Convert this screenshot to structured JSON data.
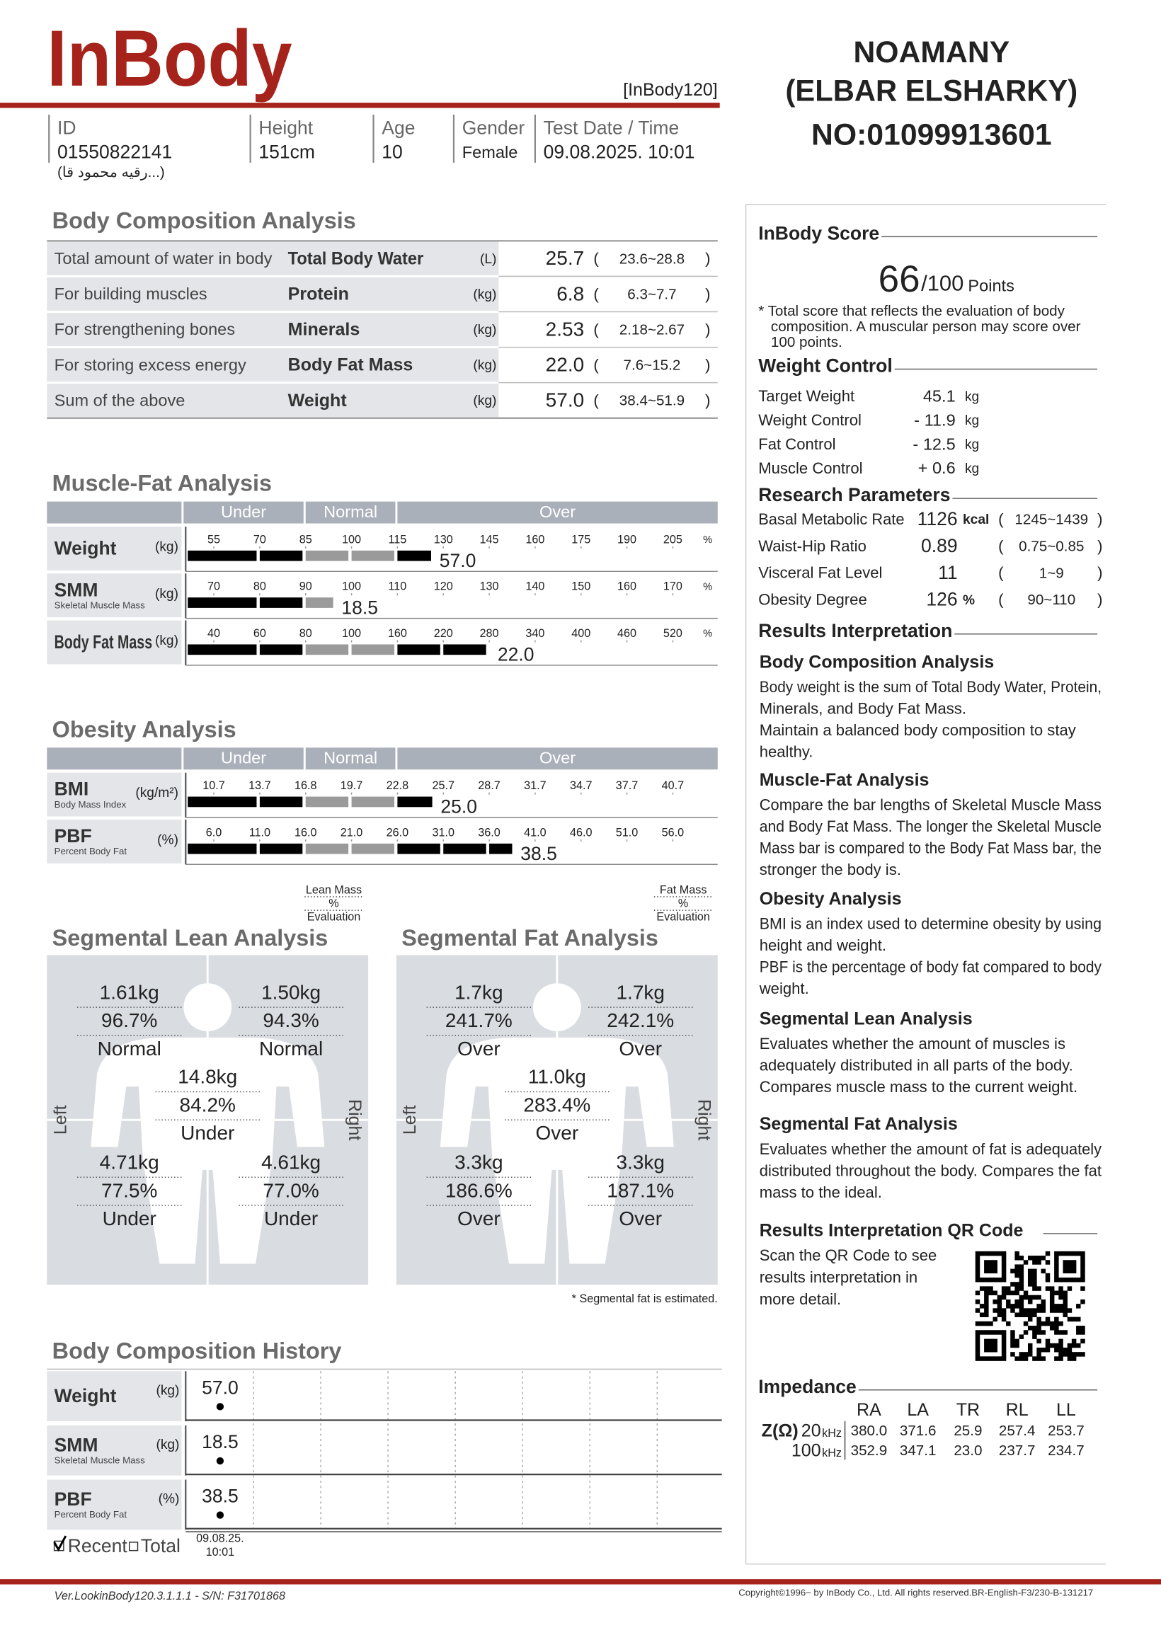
{
  "header": {
    "logo": "InBody",
    "model": "[InBody120]",
    "name_lines": [
      "NOAMANY",
      "(ELBAR ELSHARKY)",
      "NO:01099913601"
    ]
  },
  "info": [
    {
      "label": "ID",
      "value": "01550822141",
      "note": "(رقيه محمود قا...)"
    },
    {
      "label": "Height",
      "value": "151cm"
    },
    {
      "label": "Age",
      "value": "10"
    },
    {
      "label": "Gender",
      "value": "Female"
    },
    {
      "label": "Test Date / Time",
      "value": "09.08.2025. 10:01"
    }
  ],
  "brackets": [
    "(",
    ")"
  ],
  "body_composition": {
    "title": "Body Composition Analysis",
    "rows": [
      {
        "description": "Total amount of water in body",
        "name": "Total Body Water",
        "unit": "(L)",
        "value": "25.7",
        "range": "23.6~28.8"
      },
      {
        "description": "For building muscles",
        "name": "Protein",
        "unit": "(kg)",
        "value": "6.8",
        "range": "6.3~7.7"
      },
      {
        "description": "For strengthening bones",
        "name": "Minerals",
        "unit": "(kg)",
        "value": "2.53",
        "range": "2.18~2.67"
      },
      {
        "description": "For storing excess energy",
        "name": "Body Fat Mass",
        "unit": "(kg)",
        "value": "22.0",
        "range": "7.6~15.2"
      },
      {
        "description": "Sum of the above",
        "name": "Weight",
        "unit": "(kg)",
        "value": "57.0",
        "range": "38.4~51.9"
      }
    ]
  },
  "muscle_fat": {
    "title": "Muscle-Fat Analysis",
    "zones": [
      "Under",
      "Normal",
      "Over"
    ],
    "percent_sign": "%",
    "rows": [
      {
        "name": "Weight",
        "unit": "(kg)",
        "ticks": [
          55,
          70,
          85,
          100,
          115,
          130,
          145,
          160,
          175,
          190,
          205
        ],
        "percent": 126,
        "value": 57,
        "value_label": "57.0"
      },
      {
        "name": "SMM",
        "subtitle": "Skeletal Muscle Mass",
        "unit": "(kg)",
        "ticks": [
          70,
          80,
          90,
          100,
          110,
          120,
          130,
          140,
          150,
          160,
          170
        ],
        "percent": 96,
        "value": 18.5
      },
      {
        "name": "Body Fat Mass",
        "unit": "(kg)",
        "ticks": [
          40,
          60,
          80,
          100,
          160,
          220,
          280,
          340,
          400,
          460,
          520
        ],
        "percent": 280,
        "value": 22,
        "value_label": "22.0"
      }
    ]
  },
  "obesity": {
    "title": "Obesity Analysis",
    "zones": [
      "Under",
      "Normal",
      "Over"
    ],
    "rows": [
      {
        "name": "BMI",
        "subtitle": "Body Mass Index",
        "unit": "(kg/m²)",
        "ticks": [
          10.7,
          13.7,
          16.8,
          19.7,
          22.8,
          25.7,
          28.7,
          31.7,
          34.7,
          37.7,
          40.7
        ],
        "value": 25,
        "value_label": "25.0"
      },
      {
        "name": "PBF",
        "subtitle": "Percent Body Fat",
        "unit": "(%)",
        "ticks": [
          {
            "value": 6,
            "label": "6.0"
          },
          {
            "value": 11,
            "label": "11.0"
          },
          {
            "value": 16,
            "label": "16.0"
          },
          {
            "value": 21,
            "label": "21.0"
          },
          {
            "value": 26,
            "label": "26.0"
          },
          {
            "value": 31,
            "label": "31.0"
          },
          {
            "value": 36,
            "label": "36.0"
          },
          {
            "value": 41,
            "label": "41.0"
          },
          {
            "value": 46,
            "label": "46.0"
          },
          {
            "value": 51,
            "label": "51.0"
          },
          {
            "value": 56,
            "label": "56.0"
          }
        ],
        "value": 38.5
      }
    ]
  },
  "segmental_lean": {
    "title": "Segmental Lean Analysis",
    "legend": [
      "Lean Mass",
      "%",
      "Evaluation"
    ],
    "left": "Left",
    "right": "Right",
    "segments": [
      {
        "mass": "1.61kg",
        "percent": "96.7%",
        "evaluation": "Normal"
      },
      {
        "mass": "1.50kg",
        "percent": "94.3%",
        "evaluation": "Normal"
      },
      {
        "mass": "14.8kg",
        "percent": "84.2%",
        "evaluation": "Under"
      },
      {
        "mass": "4.71kg",
        "percent": "77.5%",
        "evaluation": "Under"
      },
      {
        "mass": "4.61kg",
        "percent": "77.0%",
        "evaluation": "Under"
      }
    ]
  },
  "segmental_fat": {
    "title": "Segmental Fat Analysis",
    "legend": [
      "Fat Mass",
      "%",
      "Evaluation"
    ],
    "left": "Left",
    "right": "Right",
    "note": "* Segmental fat is estimated.",
    "segments": [
      {
        "mass": "1.7kg",
        "percent": "241.7%",
        "evaluation": "Over"
      },
      {
        "mass": "1.7kg",
        "percent": "242.1%",
        "evaluation": "Over"
      },
      {
        "mass": "11.0kg",
        "percent": "283.4%",
        "evaluation": "Over"
      },
      {
        "mass": "3.3kg",
        "percent": "186.6%",
        "evaluation": "Over"
      },
      {
        "mass": "3.3kg",
        "percent": "187.1%",
        "evaluation": "Over"
      }
    ]
  },
  "history": {
    "title": "Body Composition History",
    "rows": [
      {
        "name": "Weight",
        "unit": "(kg)",
        "value": 57,
        "value_label": "57.0"
      },
      {
        "name": "SMM",
        "subtitle": "Skeletal Muscle Mass",
        "unit": "(kg)",
        "value": 18.5
      },
      {
        "name": "PBF",
        "subtitle": "Percent Body Fat",
        "unit": "(%)",
        "value": 38.5
      }
    ],
    "date": [
      "09.08.25.",
      "10:01"
    ],
    "options": [
      "Recent",
      "Total"
    ]
  },
  "score": {
    "title": "InBody Score",
    "value": "66",
    "out_of": "/100",
    "unit": "Points",
    "note": [
      "* Total score that reflects the evaluation of body",
      "composition. A muscular person may score over",
      "100 points."
    ]
  },
  "weight_control": {
    "title": "Weight Control",
    "rows": [
      {
        "label": "Target Weight",
        "value": "45.1",
        "unit": "kg"
      },
      {
        "label": "Weight Control",
        "value": "- 11.9",
        "unit": "kg"
      },
      {
        "label": "Fat Control",
        "value": "- 12.5",
        "unit": "kg"
      },
      {
        "label": "Muscle Control",
        "value": "+ 0.6",
        "unit": "kg"
      }
    ]
  },
  "research": {
    "title": "Research Parameters",
    "rows": [
      {
        "label": "Basal Metabolic Rate",
        "value": "1126",
        "unit": "kcal",
        "range": "1245~1439"
      },
      {
        "label": "Waist-Hip Ratio",
        "value": "0.89",
        "range": "0.75~0.85"
      },
      {
        "label": "Visceral Fat Level",
        "value": "11",
        "range": "1~9"
      },
      {
        "label": "Obesity Degree",
        "value": "126",
        "unit": "%",
        "range": "90~110"
      }
    ]
  },
  "interpretation": {
    "title": "Results Interpretation",
    "sections": [
      {
        "heading": "Body Composition Analysis",
        "lines": [
          "Body weight is the sum of Total Body Water, Protein,",
          "Minerals, and Body Fat Mass.",
          "Maintain a balanced body composition to stay",
          "healthy."
        ]
      },
      {
        "heading": "Muscle-Fat Analysis",
        "lines": [
          "Compare the bar lengths of Skeletal Muscle Mass",
          "and Body Fat Mass. The longer the Skeletal Muscle",
          "Mass bar is compared to the Body Fat Mass bar, the",
          "stronger the body is."
        ]
      },
      {
        "heading": "Obesity Analysis",
        "lines": [
          "BMI is an index used to determine obesity by using",
          "height and weight.",
          "PBF is the percentage of body fat compared to body",
          "weight."
        ]
      },
      {
        "heading": "Segmental Lean Analysis",
        "lines": [
          "Evaluates whether the amount of muscles is",
          "adequately distributed in all parts of the body.",
          "Compares muscle mass to the current weight."
        ]
      },
      {
        "heading": "Segmental Fat Analysis",
        "lines": [
          "Evaluates whether the amount of fat is adequately",
          "distributed throughout the body. Compares the fat",
          "mass to the ideal."
        ]
      }
    ]
  },
  "qr": {
    "title": "Results Interpretation QR Code",
    "lines": [
      "Scan the QR Code to see",
      "results interpretation in",
      "more detail."
    ]
  },
  "impedance": {
    "title": "Impedance",
    "columns": [
      "RA",
      "LA",
      "TR",
      "RL",
      "LL"
    ],
    "z_label": "Z(Ω)",
    "rows": [
      {
        "frequency": "20",
        "unit": "kHz",
        "values": [
          "380.0",
          "371.6",
          "25.9",
          "257.4",
          "253.7"
        ]
      },
      {
        "frequency": "100",
        "unit": "kHz",
        "values": [
          "352.9",
          "347.1",
          "23.0",
          "237.7",
          "234.7"
        ]
      }
    ]
  },
  "footer": {
    "version": "Ver.LookinBody120.3.1.1.1 - S/N: F31701868",
    "copyright": "Copyright©1996~ by InBody Co., Ltd. All rights reserved.BR-English-F3/230-B-131217"
  }
}
